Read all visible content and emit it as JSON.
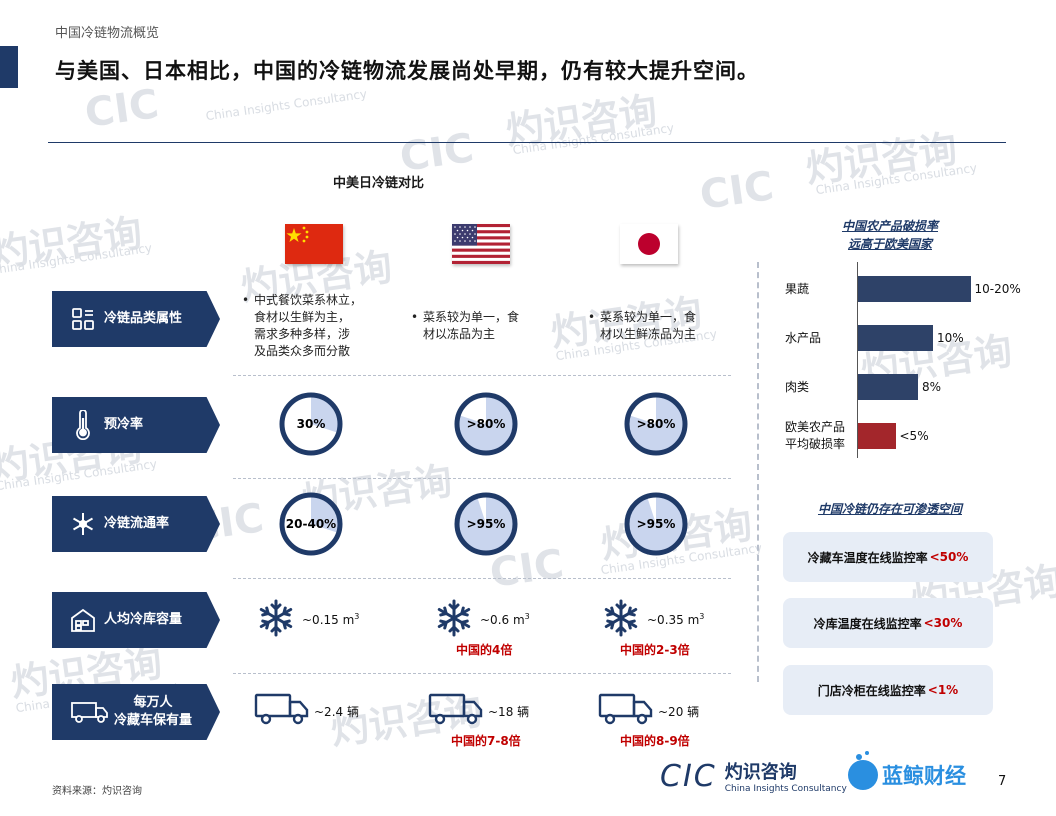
{
  "header": {
    "section": "中国冷链物流概览",
    "title": "与美国、日本相比，中国的冷链物流发展尚处早期，仍有较大提升空间。"
  },
  "comparison": {
    "title": "中美日冷链对比",
    "countries": [
      {
        "flag": "china-flag-icon"
      },
      {
        "flag": "us-flag-icon"
      },
      {
        "flag": "japan-flag-icon"
      }
    ],
    "rows": [
      {
        "label": "冷链品类属性",
        "icon": "grid-icon",
        "cells": [
          {
            "lines": [
              "中式餐饮菜系林立，",
              "食材以生鲜为主，",
              "需求多种多样，涉",
              "及品类众多而分散"
            ]
          },
          {
            "lines": [
              "菜系较为单一，食",
              "材以冻品为主"
            ]
          },
          {
            "lines": [
              "菜系较为单一，食",
              "材以生鲜冻品为主"
            ]
          }
        ]
      },
      {
        "label": "预冷率",
        "icon": "thermometer-icon",
        "cells": [
          {
            "value": "30%",
            "fraction": 0.3
          },
          {
            "value": ">80%",
            "fraction": 0.8
          },
          {
            "value": ">80%",
            "fraction": 0.8
          }
        ]
      },
      {
        "label": "冷链流通率",
        "icon": "snowflake-icon",
        "cells": [
          {
            "value": "20-40%",
            "fraction": 0.3
          },
          {
            "value": ">95%",
            "fraction": 0.95
          },
          {
            "value": ">95%",
            "fraction": 0.95
          }
        ]
      },
      {
        "label": "人均冷库容量",
        "icon": "warehouse-icon",
        "cells": [
          {
            "value": "~0.15 m",
            "sup": "3",
            "note": ""
          },
          {
            "value": "~0.6 m",
            "sup": "3",
            "note": "中国的4倍"
          },
          {
            "value": "~0.35 m",
            "sup": "3",
            "note": "中国的2-3倍"
          }
        ]
      },
      {
        "label_lines": [
          "每万人",
          "冷藏车保有量"
        ],
        "icon": "truck-icon",
        "cells": [
          {
            "value": "~2.4 辆",
            "note": ""
          },
          {
            "value": "~18 辆",
            "note": "中国的7-8倍"
          },
          {
            "value": "~20 辆",
            "note": "中国的8-9倍"
          }
        ]
      }
    ]
  },
  "loss_panel": {
    "title_lines": [
      "中国农产品破损率",
      "远高于欧美国家"
    ],
    "chart_data": {
      "type": "bar",
      "orientation": "horizontal",
      "categories": [
        "果蔬",
        "水产品",
        "肉类",
        "欧美农产品平均破损率"
      ],
      "category_lines": [
        [
          "果蔬"
        ],
        [
          "水产品"
        ],
        [
          "肉类"
        ],
        [
          "欧美农产品",
          "平均破损率"
        ]
      ],
      "values": [
        15,
        10,
        8,
        5
      ],
      "labels": [
        "10-20%",
        "10%",
        "8%",
        "<5%"
      ],
      "colors": [
        "#2e4268",
        "#2e4268",
        "#2e4268",
        "#a3262b"
      ],
      "xlim": [
        0,
        16
      ]
    }
  },
  "penetration_panel": {
    "title": "中国冷链仍存在可渗透空间",
    "cards": [
      {
        "text": "冷藏车温度在线监控率",
        "value": "<50%"
      },
      {
        "text": "冷库温度在线监控率",
        "value": "<30%"
      },
      {
        "text": "门店冷柜在线监控率",
        "value": "<1%"
      }
    ]
  },
  "footer": {
    "source": "资料来源：灼识咨询",
    "page": "7",
    "logo_cic_text": "CIC",
    "logo_cic_cn": "灼识咨询",
    "logo_cic_en": "China Insights Consultancy",
    "logo_lj_text": "蓝鲸财经"
  },
  "watermark": {
    "cn": "灼识咨询",
    "en": "China Insights Consultancy",
    "abbr": "CIC"
  },
  "colors": {
    "navy": "#1f3a68",
    "bar": "#2e4268",
    "accent_red": "#c00000",
    "pie_fill": "#c9d5ee"
  }
}
